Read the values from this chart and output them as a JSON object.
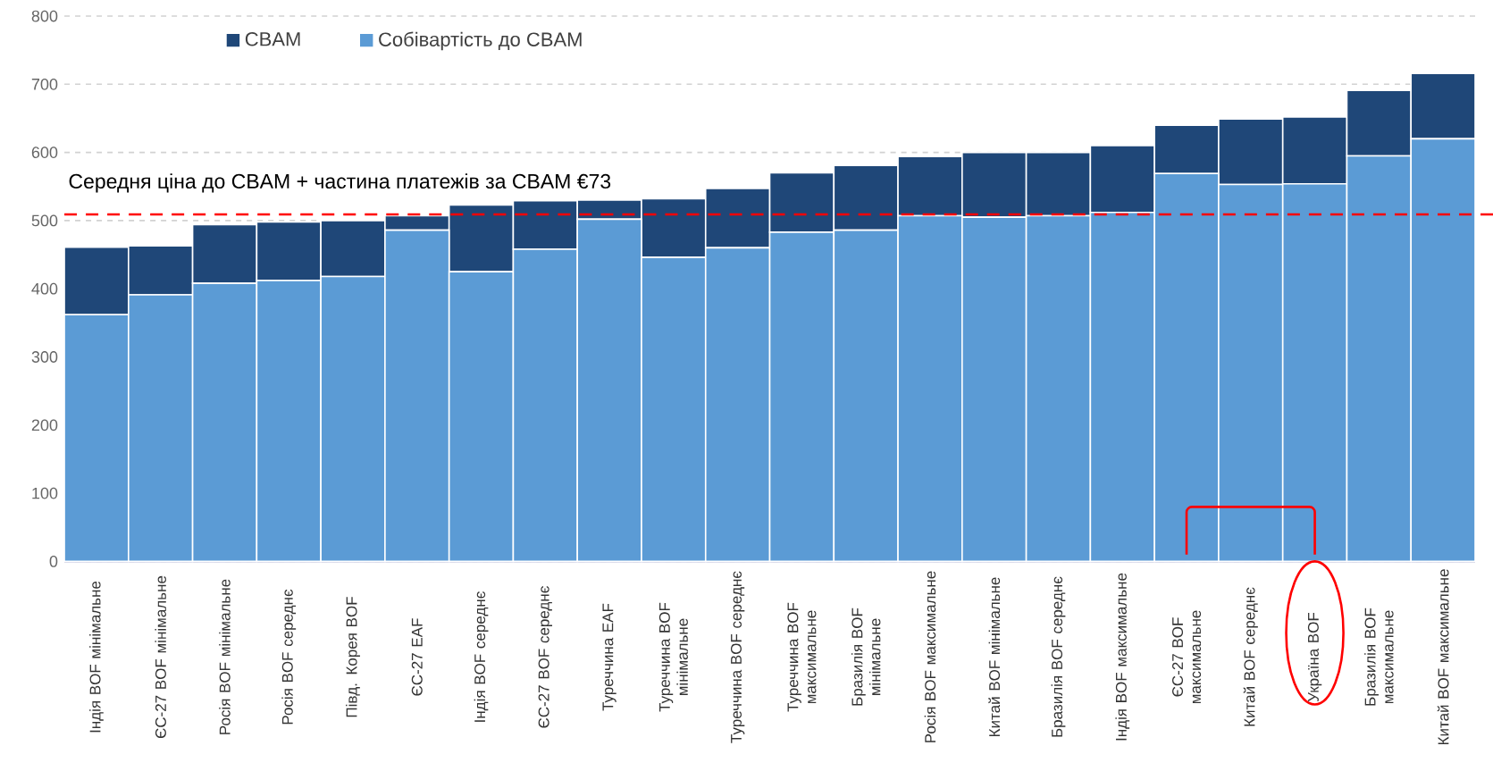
{
  "chart_data": {
    "type": "bar",
    "stacked": true,
    "categories": [
      "Індія BOF мінімальне",
      "ЄС-27 BOF мінімальне",
      "Росія BOF мінімальне",
      "Росія BOF середнє",
      "Півд. Корея BOF",
      "ЄС-27 EAF",
      "Індія BOF середнє",
      "ЄС-27 BOF середнє",
      "Туреччина EAF",
      "Туреччина BOF мінімальне",
      "Туреччина BOF середнє",
      "Туреччина BOF максимальне",
      "Бразилія BOF мінімальне",
      "Росія BOF максимальне",
      "Китай BOF мінімальне",
      "Бразилія BOF середнє",
      "Індія BOF максимальне",
      "ЄС-27 BOF максимальне",
      "Китай BOF середнє",
      "Україна BOF",
      "Бразилія BOF максимальне",
      "Китай BOF максимальне"
    ],
    "series": [
      {
        "name": "Собівартість до CBAM",
        "color": "#5b9bd5",
        "values": [
          362,
          391,
          408,
          412,
          418,
          486,
          425,
          458,
          502,
          446,
          460,
          483,
          486,
          507,
          505,
          507,
          512,
          569,
          553,
          554,
          595,
          620
        ]
      },
      {
        "name": "CBAM",
        "color": "#1f4778",
        "values": [
          99,
          72,
          86,
          86,
          82,
          21,
          98,
          71,
          28,
          86,
          87,
          87,
          95,
          87,
          95,
          93,
          98,
          71,
          96,
          98,
          96,
          96
        ]
      }
    ],
    "ylim": [
      0,
      800
    ],
    "yticks": [
      0,
      100,
      200,
      300,
      400,
      500,
      600,
      700,
      800
    ],
    "grid": "y",
    "legend": "top left",
    "ref_lines": [
      {
        "axis": "y",
        "value": 509,
        "label": "Середня ціна до CBAM + частина платежів за CBAM €73",
        "color": "#ff0000",
        "line_style": "dashed"
      }
    ]
  }
}
